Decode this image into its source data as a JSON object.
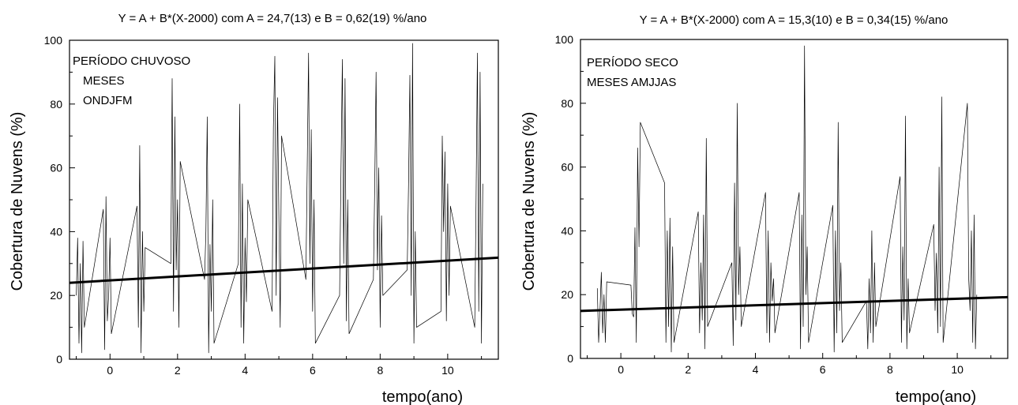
{
  "chart_data": [
    {
      "type": "line",
      "title": "Y = A + B*(X-2000) com A = 24,7(13) e B = 0,62(19) %/ano",
      "xlabel": "tempo(ano)",
      "ylabel": "Cobertura de Nuvens (%)",
      "xlim": [
        -1.2,
        11.5
      ],
      "ylim": [
        0,
        100
      ],
      "xticks": [
        "0",
        "2",
        "4",
        "6",
        "8",
        "10"
      ],
      "yticks": [
        "0",
        "20",
        "40",
        "60",
        "80",
        "100"
      ],
      "annotations": [
        "PERÍODO CHUVOSO",
        "MESES",
        "ONDJFM"
      ],
      "fit": {
        "A": 24.7,
        "B": 0.62
      },
      "series": [
        {
          "x": [
            -1.0,
            -0.96,
            -0.92,
            -0.88,
            -0.84,
            -0.8,
            -0.76,
            -0.2,
            -0.16,
            -0.12,
            -0.08,
            -0.04,
            0.0,
            0.04,
            0.8,
            0.84,
            0.88,
            0.92,
            0.96,
            1.0,
            1.04,
            1.8,
            1.84,
            1.88,
            1.92,
            1.96,
            2.0,
            2.04,
            2.08,
            2.8,
            2.84,
            2.88,
            2.92,
            2.96,
            3.0,
            3.04,
            3.08,
            3.8,
            3.84,
            3.88,
            3.92,
            3.96,
            4.0,
            4.04,
            4.08,
            4.8,
            4.84,
            4.88,
            4.92,
            4.96,
            5.0,
            5.04,
            5.08,
            5.8,
            5.84,
            5.88,
            5.92,
            5.96,
            6.0,
            6.04,
            6.08,
            6.8,
            6.84,
            6.88,
            6.92,
            6.96,
            7.0,
            7.04,
            7.08,
            7.8,
            7.84,
            7.88,
            7.92,
            7.96,
            8.0,
            8.04,
            8.08,
            8.8,
            8.84,
            8.88,
            8.92,
            8.96,
            9.0,
            9.04,
            9.08,
            9.8,
            9.84,
            9.88,
            9.92,
            9.96,
            10.0,
            10.04,
            10.08,
            10.8,
            10.84,
            10.88,
            10.92,
            10.96,
            11.0,
            11.04
          ],
          "y": [
            20,
            38,
            5,
            30,
            2,
            37,
            10,
            47,
            3,
            51,
            12,
            20,
            38,
            8,
            48,
            10,
            67,
            2,
            40,
            15,
            35,
            30,
            88,
            15,
            76,
            28,
            50,
            10,
            62,
            25,
            40,
            76,
            2,
            36,
            15,
            50,
            5,
            30,
            80,
            10,
            55,
            5,
            38,
            18,
            50,
            15,
            73,
            95,
            20,
            82,
            45,
            10,
            70,
            25,
            60,
            96,
            30,
            72,
            15,
            50,
            5,
            20,
            60,
            94,
            30,
            88,
            12,
            50,
            8,
            25,
            55,
            90,
            28,
            60,
            10,
            45,
            20,
            28,
            55,
            89,
            20,
            99,
            5,
            40,
            10,
            15,
            70,
            40,
            65,
            12,
            55,
            20,
            48,
            10,
            50,
            96,
            15,
            90,
            5,
            55
          ]
        }
      ]
    },
    {
      "type": "line",
      "title": "Y = A + B*(X-2000) com A = 15,3(10) e B = 0,34(15) %/ano",
      "xlabel": "tempo(ano)",
      "ylabel": "Cobertura de Nuvens (%)",
      "xlim": [
        -1.2,
        11.5
      ],
      "ylim": [
        0,
        100
      ],
      "xticks": [
        "0",
        "2",
        "4",
        "6",
        "8",
        "10"
      ],
      "yticks": [
        "0",
        "20",
        "40",
        "60",
        "80",
        "100"
      ],
      "annotations": [
        "PERÍODO SECO",
        "MESES  AMJJAS"
      ],
      "fit": {
        "A": 15.3,
        "B": 0.34
      },
      "series": [
        {
          "x": [
            -0.7,
            -0.66,
            -0.62,
            -0.58,
            -0.54,
            -0.5,
            -0.46,
            -0.42,
            0.3,
            0.34,
            0.38,
            0.42,
            0.46,
            0.5,
            0.54,
            0.58,
            1.3,
            1.34,
            1.38,
            1.42,
            1.46,
            1.5,
            1.54,
            1.58,
            2.3,
            2.34,
            2.38,
            2.42,
            2.46,
            2.5,
            2.54,
            2.58,
            3.3,
            3.34,
            3.38,
            3.42,
            3.46,
            3.5,
            3.54,
            3.58,
            4.3,
            4.34,
            4.38,
            4.42,
            4.46,
            4.5,
            4.54,
            4.58,
            5.3,
            5.34,
            5.38,
            5.42,
            5.46,
            5.5,
            5.54,
            5.58,
            6.3,
            6.34,
            6.38,
            6.42,
            6.46,
            6.5,
            6.54,
            6.58,
            7.3,
            7.34,
            7.38,
            7.42,
            7.46,
            7.5,
            7.54,
            7.58,
            8.3,
            8.34,
            8.38,
            8.42,
            8.46,
            8.5,
            8.54,
            8.58,
            9.3,
            9.34,
            9.38,
            9.42,
            9.46,
            9.5,
            9.54,
            9.58,
            10.3,
            10.34,
            10.38,
            10.42,
            10.46,
            10.5,
            10.54,
            10.58
          ],
          "y": [
            22,
            5,
            15,
            27,
            8,
            20,
            5,
            24,
            23,
            14,
            13,
            41,
            5,
            66,
            35,
            74,
            55,
            5,
            40,
            10,
            44,
            2,
            35,
            5,
            46,
            8,
            30,
            12,
            45,
            3,
            69,
            10,
            30,
            4,
            55,
            12,
            80,
            20,
            35,
            10,
            52,
            8,
            40,
            5,
            30,
            18,
            25,
            8,
            52,
            3,
            45,
            10,
            98,
            20,
            35,
            5,
            48,
            2,
            40,
            8,
            74,
            15,
            30,
            5,
            18,
            3,
            25,
            8,
            40,
            5,
            30,
            10,
            57,
            5,
            35,
            12,
            76,
            3,
            25,
            8,
            42,
            15,
            33,
            8,
            60,
            10,
            82,
            5,
            80,
            25,
            15,
            40,
            5,
            45,
            3,
            20
          ]
        }
      ]
    }
  ]
}
